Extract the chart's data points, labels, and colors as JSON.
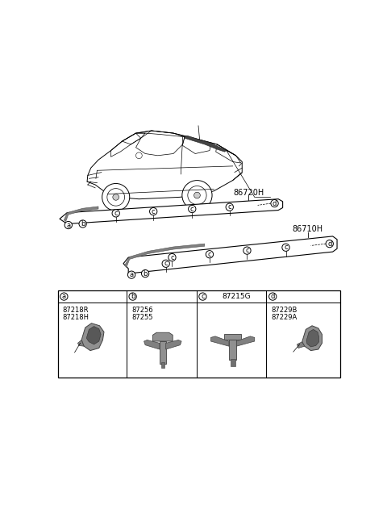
{
  "bg_color": "#ffffff",
  "line_color": "#000000",
  "text_color": "#000000",
  "gray_fill": "#b0b0b0",
  "light_gray": "#d8d8d8",
  "callout_86720H": "86720H",
  "callout_86710H": "86710H",
  "label_fontsize": 6.5,
  "callout_fontsize": 7,
  "part_number_fontsize": 6,
  "col_letters": [
    "a",
    "b",
    "c",
    "d"
  ],
  "col_part_numbers_a": [
    "87218R",
    "87218H"
  ],
  "col_part_numbers_b": [
    "87256",
    "87255"
  ],
  "col_part_number_c_header": "87215G",
  "col_part_numbers_d": [
    "87229B",
    "87229A"
  ]
}
